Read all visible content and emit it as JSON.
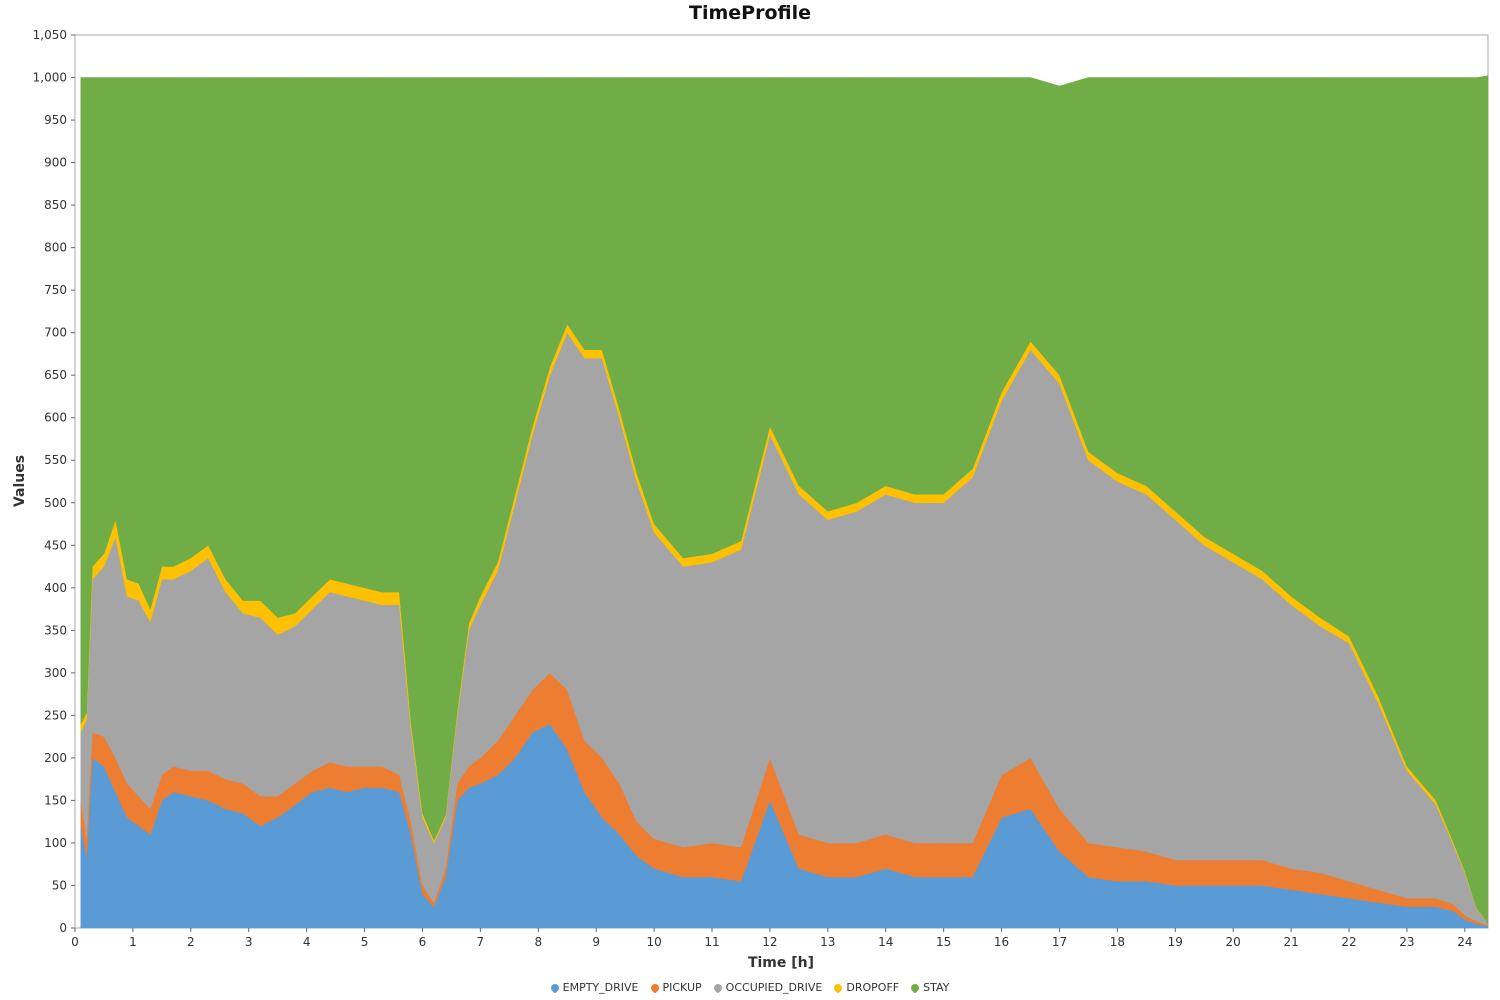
{
  "chart_data": {
    "type": "area",
    "stacked": true,
    "title": "TimeProfile",
    "xlabel": "Time [h]",
    "ylabel": "Values",
    "xlim": [
      0,
      24.4
    ],
    "ylim": [
      0,
      1050
    ],
    "x_ticks": [
      "0",
      "1",
      "2",
      "3",
      "4",
      "5",
      "6",
      "7",
      "8",
      "9",
      "10",
      "11",
      "12",
      "13",
      "14",
      "15",
      "16",
      "17",
      "18",
      "19",
      "20",
      "21",
      "22",
      "23",
      "24"
    ],
    "y_ticks": [
      "0",
      "50",
      "100",
      "150",
      "200",
      "250",
      "300",
      "350",
      "400",
      "450",
      "500",
      "550",
      "600",
      "650",
      "700",
      "750",
      "800",
      "850",
      "900",
      "950",
      "1,000",
      "1,050"
    ],
    "legend_position": "bottom-center",
    "total_fleet": 1000,
    "series": [
      {
        "name": "EMPTY_DRIVE",
        "color": "#5b9bd5",
        "x": [
          0.1,
          0.2,
          0.3,
          0.5,
          0.7,
          0.9,
          1.1,
          1.3,
          1.5,
          1.7,
          2.0,
          2.3,
          2.6,
          2.9,
          3.2,
          3.5,
          3.8,
          4.1,
          4.4,
          4.7,
          5.0,
          5.3,
          5.6,
          5.8,
          6.0,
          6.2,
          6.4,
          6.6,
          6.8,
          7.0,
          7.3,
          7.6,
          7.9,
          8.2,
          8.5,
          8.8,
          9.1,
          9.4,
          9.7,
          10.0,
          10.5,
          11.0,
          11.5,
          12.0,
          12.5,
          13.0,
          13.5,
          14.0,
          14.5,
          15.0,
          15.5,
          16.0,
          16.5,
          17.0,
          17.5,
          18.0,
          18.5,
          19.0,
          19.5,
          20.0,
          20.5,
          21.0,
          21.5,
          22.0,
          22.5,
          23.0,
          23.5,
          23.8,
          24.0,
          24.2,
          24.4
        ],
        "y": [
          120,
          85,
          200,
          190,
          160,
          130,
          120,
          110,
          150,
          160,
          155,
          150,
          140,
          135,
          120,
          130,
          145,
          160,
          165,
          160,
          165,
          165,
          160,
          110,
          40,
          25,
          60,
          150,
          165,
          170,
          180,
          200,
          230,
          240,
          210,
          160,
          130,
          110,
          85,
          70,
          60,
          60,
          55,
          150,
          70,
          60,
          60,
          70,
          60,
          60,
          60,
          130,
          140,
          90,
          60,
          55,
          55,
          50,
          50,
          50,
          50,
          45,
          40,
          35,
          30,
          25,
          25,
          20,
          10,
          5,
          2
        ]
      },
      {
        "name": "PICKUP",
        "color": "#ed7d31",
        "x": [
          0.1,
          0.2,
          0.3,
          0.5,
          0.7,
          0.9,
          1.1,
          1.3,
          1.5,
          1.7,
          2.0,
          2.3,
          2.6,
          2.9,
          3.2,
          3.5,
          3.8,
          4.1,
          4.4,
          4.7,
          5.0,
          5.3,
          5.6,
          5.8,
          6.0,
          6.2,
          6.4,
          6.6,
          6.8,
          7.0,
          7.3,
          7.6,
          7.9,
          8.2,
          8.5,
          8.8,
          9.1,
          9.4,
          9.7,
          10.0,
          10.5,
          11.0,
          11.5,
          12.0,
          12.5,
          13.0,
          13.5,
          14.0,
          14.5,
          15.0,
          15.5,
          16.0,
          16.5,
          17.0,
          17.5,
          18.0,
          18.5,
          19.0,
          19.5,
          20.0,
          20.5,
          21.0,
          21.5,
          22.0,
          22.5,
          23.0,
          23.5,
          23.8,
          24.0,
          24.2,
          24.4
        ],
        "y": [
          30,
          20,
          30,
          35,
          40,
          40,
          35,
          30,
          30,
          30,
          30,
          35,
          35,
          35,
          35,
          25,
          25,
          25,
          30,
          30,
          25,
          25,
          20,
          15,
          10,
          5,
          10,
          20,
          25,
          30,
          40,
          50,
          50,
          60,
          70,
          60,
          70,
          60,
          40,
          35,
          35,
          40,
          40,
          50,
          40,
          40,
          40,
          40,
          40,
          40,
          40,
          50,
          60,
          50,
          40,
          40,
          35,
          30,
          30,
          30,
          30,
          25,
          25,
          20,
          15,
          10,
          10,
          8,
          5,
          3,
          1
        ]
      },
      {
        "name": "OCCUPIED_DRIVE",
        "color": "#a5a5a5",
        "x": [
          0.1,
          0.2,
          0.3,
          0.5,
          0.7,
          0.9,
          1.1,
          1.3,
          1.5,
          1.7,
          2.0,
          2.3,
          2.6,
          2.9,
          3.2,
          3.5,
          3.8,
          4.1,
          4.4,
          4.7,
          5.0,
          5.3,
          5.6,
          5.8,
          6.0,
          6.2,
          6.4,
          6.6,
          6.8,
          7.0,
          7.3,
          7.6,
          7.9,
          8.2,
          8.5,
          8.8,
          9.1,
          9.4,
          9.7,
          10.0,
          10.5,
          11.0,
          11.5,
          12.0,
          12.5,
          13.0,
          13.5,
          14.0,
          14.5,
          15.0,
          15.5,
          16.0,
          16.5,
          17.0,
          17.5,
          18.0,
          18.5,
          19.0,
          19.5,
          20.0,
          20.5,
          21.0,
          21.5,
          22.0,
          22.5,
          23.0,
          23.5,
          23.8,
          24.0,
          24.2,
          24.4
        ],
        "y": [
          80,
          140,
          180,
          200,
          260,
          220,
          230,
          220,
          230,
          220,
          235,
          250,
          220,
          200,
          210,
          190,
          185,
          190,
          200,
          200,
          195,
          190,
          200,
          110,
          80,
          70,
          60,
          80,
          160,
          180,
          200,
          250,
          300,
          350,
          420,
          450,
          470,
          430,
          400,
          360,
          330,
          330,
          350,
          380,
          400,
          380,
          390,
          400,
          400,
          400,
          430,
          440,
          480,
          500,
          450,
          430,
          420,
          400,
          370,
          350,
          330,
          310,
          290,
          280,
          220,
          150,
          110,
          70,
          50,
          15,
          2
        ]
      },
      {
        "name": "DROPOFF",
        "color": "#ffc000",
        "x": [
          0.1,
          0.2,
          0.3,
          0.5,
          0.7,
          0.9,
          1.1,
          1.3,
          1.5,
          1.7,
          2.0,
          2.3,
          2.6,
          2.9,
          3.2,
          3.5,
          3.8,
          4.1,
          4.4,
          4.7,
          5.0,
          5.3,
          5.6,
          5.8,
          6.0,
          6.2,
          6.4,
          6.6,
          6.8,
          7.0,
          7.3,
          7.6,
          7.9,
          8.2,
          8.5,
          8.8,
          9.1,
          9.4,
          9.7,
          10.0,
          10.5,
          11.0,
          11.5,
          12.0,
          12.5,
          13.0,
          13.5,
          14.0,
          14.5,
          15.0,
          15.5,
          16.0,
          16.5,
          17.0,
          17.5,
          18.0,
          18.5,
          19.0,
          19.5,
          20.0,
          20.5,
          21.0,
          21.5,
          22.0,
          22.5,
          23.0,
          23.5,
          23.8,
          24.0,
          24.2,
          24.4
        ],
        "y": [
          10,
          8,
          15,
          15,
          20,
          20,
          20,
          15,
          15,
          15,
          15,
          15,
          15,
          15,
          20,
          20,
          15,
          15,
          15,
          15,
          15,
          15,
          15,
          8,
          5,
          3,
          3,
          5,
          8,
          10,
          10,
          10,
          10,
          10,
          10,
          10,
          10,
          10,
          10,
          10,
          10,
          10,
          10,
          10,
          10,
          10,
          10,
          10,
          10,
          10,
          10,
          10,
          10,
          10,
          10,
          10,
          10,
          10,
          10,
          10,
          10,
          10,
          10,
          8,
          8,
          5,
          5,
          3,
          2,
          1,
          0
        ]
      },
      {
        "name": "STAY",
        "color": "#70ad47",
        "x": [
          0.1,
          0.2,
          0.3,
          0.5,
          0.7,
          0.9,
          1.1,
          1.3,
          1.5,
          1.7,
          2.0,
          2.3,
          2.6,
          2.9,
          3.2,
          3.5,
          3.8,
          4.1,
          4.4,
          4.7,
          5.0,
          5.3,
          5.6,
          5.8,
          6.0,
          6.2,
          6.4,
          6.6,
          6.8,
          7.0,
          7.3,
          7.6,
          7.9,
          8.2,
          8.5,
          8.8,
          9.1,
          9.4,
          9.7,
          10.0,
          10.5,
          11.0,
          11.5,
          12.0,
          12.5,
          13.0,
          13.5,
          14.0,
          14.5,
          15.0,
          15.5,
          16.0,
          16.5,
          17.0,
          17.5,
          18.0,
          18.5,
          19.0,
          19.5,
          20.0,
          20.5,
          21.0,
          21.5,
          22.0,
          22.5,
          23.0,
          23.5,
          23.8,
          24.0,
          24.2,
          24.4
        ],
        "y": [
          760,
          747,
          575,
          560,
          520,
          590,
          595,
          625,
          575,
          575,
          565,
          550,
          590,
          615,
          615,
          635,
          630,
          610,
          590,
          595,
          600,
          605,
          605,
          757,
          865,
          897,
          867,
          745,
          642,
          610,
          570,
          490,
          410,
          340,
          290,
          320,
          320,
          390,
          465,
          525,
          565,
          560,
          545,
          410,
          480,
          510,
          500,
          480,
          490,
          490,
          460,
          370,
          310,
          340,
          440,
          465,
          480,
          510,
          540,
          560,
          580,
          610,
          635,
          657,
          727,
          810,
          850,
          899,
          933,
          976,
          997
        ]
      }
    ]
  }
}
